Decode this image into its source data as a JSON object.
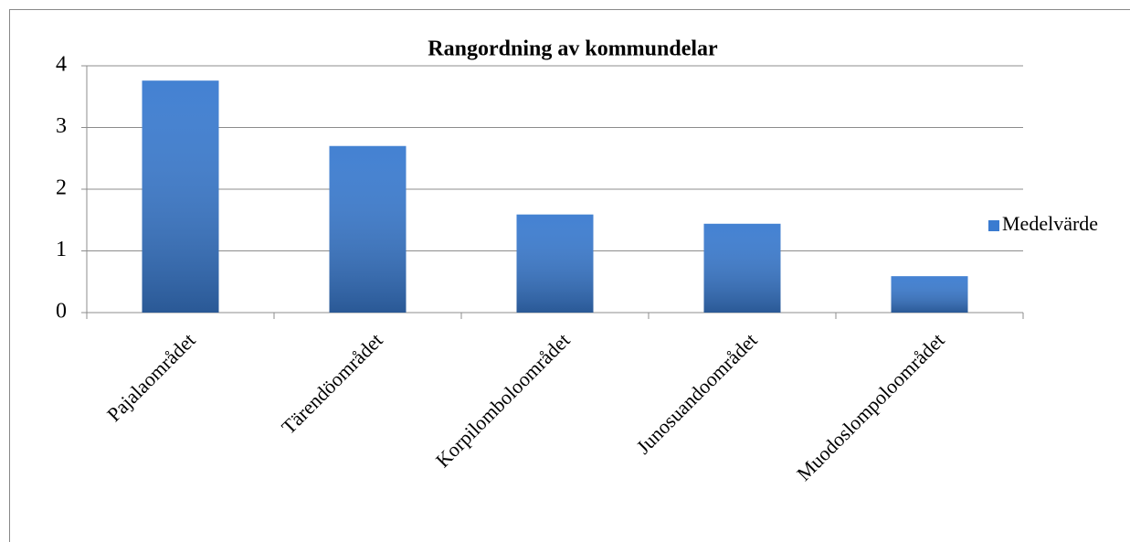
{
  "chart_data": {
    "type": "bar",
    "title": "Rangordning av kommundelar",
    "categories": [
      "Pajalaområdet",
      "Tärendöområdet",
      "Korpilomboloområdet",
      "Junosuandoområdet",
      "Muodoslompoloområdet"
    ],
    "series": [
      {
        "name": "Medelvärde",
        "color": "#3a7bd0",
        "values": [
          3.76,
          2.7,
          1.59,
          1.44,
          0.59
        ]
      }
    ],
    "ylim": [
      0,
      4
    ],
    "yticks": [
      0,
      1,
      2,
      3,
      4
    ],
    "grid": true,
    "legend": "right"
  }
}
